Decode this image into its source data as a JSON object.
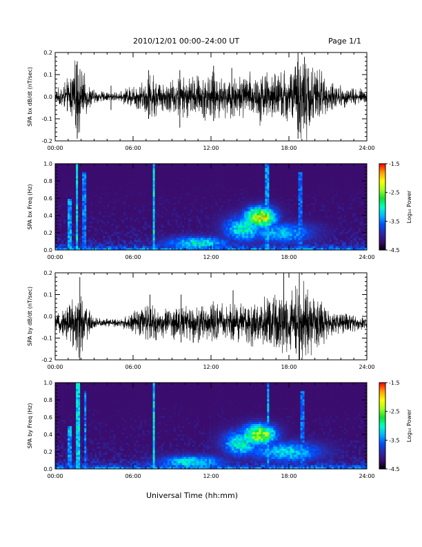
{
  "header": {
    "title": "2010/12/01  00:00–24:00 UT",
    "page": "Page 1/1"
  },
  "x_axis_title": "Universal Time (hh:mm)",
  "colors": {
    "trace": "#000000",
    "axes": "#000000",
    "background": "#ffffff",
    "colormap": [
      "#000000",
      "#3a0d6e",
      "#2a2aa8",
      "#0050ff",
      "#00b8ff",
      "#00ffc8",
      "#10e030",
      "#a0ff20",
      "#ffff00",
      "#ffa000",
      "#ff0000"
    ]
  },
  "chart_data": [
    {
      "type": "line",
      "ylabel": "SPA bx dB/dt (nT/sec)",
      "xlim": [
        "00:00",
        "24:00"
      ],
      "ylim": [
        -0.2,
        0.2
      ],
      "x_ticks": [
        "00:00",
        "06:00",
        "12:00",
        "18:00",
        "24:00"
      ],
      "y_ticks": [
        "-0.2",
        "-0.1",
        "0.0",
        "0.1",
        "0.2"
      ],
      "y_tick_values": [
        -0.2,
        -0.1,
        0.0,
        0.1,
        0.2
      ],
      "baseline": 0.0,
      "envelope": {
        "x_hours": [
          0,
          0.5,
          1.0,
          1.5,
          1.8,
          2.2,
          2.6,
          3.0,
          4.0,
          5.0,
          5.5,
          6.0,
          6.5,
          7.0,
          7.5,
          8.0,
          9.0,
          10.0,
          11.0,
          12.0,
          13.0,
          14.0,
          15.0,
          16.0,
          17.0,
          18.0,
          19.0,
          20.0,
          21.0,
          22.0,
          23.0,
          24.0
        ],
        "amplitude": [
          0.03,
          0.05,
          0.08,
          0.15,
          0.17,
          0.1,
          0.06,
          0.03,
          0.02,
          0.02,
          0.04,
          0.05,
          0.06,
          0.08,
          0.11,
          0.07,
          0.08,
          0.09,
          0.1,
          0.11,
          0.09,
          0.1,
          0.11,
          0.12,
          0.11,
          0.13,
          0.2,
          0.15,
          0.08,
          0.05,
          0.04,
          0.03
        ]
      },
      "spikes": [
        {
          "x_hours": 1.7,
          "ymin": -0.19,
          "ymax": 0.16
        },
        {
          "x_hours": 4.3,
          "ymin": -0.06,
          "ymax": 0.05
        },
        {
          "x_hours": 7.2,
          "ymin": -0.1,
          "ymax": 0.12
        },
        {
          "x_hours": 9.6,
          "ymin": -0.14,
          "ymax": 0.12
        },
        {
          "x_hours": 12.2,
          "ymin": -0.11,
          "ymax": 0.14
        },
        {
          "x_hours": 13.6,
          "ymin": -0.08,
          "ymax": 0.13
        },
        {
          "x_hours": 18.7,
          "ymin": -0.19,
          "ymax": 0.2
        },
        {
          "x_hours": 19.2,
          "ymin": -0.12,
          "ymax": 0.18
        }
      ]
    },
    {
      "type": "heatmap",
      "ylabel": "SPA bx Freq (Hz)",
      "colorbar_label": "Log₁₀ Power",
      "xlim": [
        "00:00",
        "24:00"
      ],
      "ylim": [
        0.0,
        1.0
      ],
      "x_ticks": [
        "00:00",
        "06:00",
        "12:00",
        "18:00",
        "24:00"
      ],
      "y_ticks": [
        "0.0",
        "0.2",
        "0.4",
        "0.6",
        "0.8",
        "1.0"
      ],
      "y_tick_values": [
        0.0,
        0.2,
        0.4,
        0.6,
        0.8,
        1.0
      ],
      "colorbar_ticks": [
        "-1.5",
        "-2.5",
        "-3.5",
        "-4.5"
      ],
      "colorbar_tick_values": [
        -1.5,
        -2.5,
        -3.5,
        -4.5
      ],
      "zlim": [
        -4.5,
        -1.5
      ],
      "features": {
        "vertical_lines": [
          {
            "x_hours": 1.1,
            "fmax": 0.6,
            "level": -3.4
          },
          {
            "x_hours": 1.7,
            "fmax": 1.0,
            "level": -3.2
          },
          {
            "x_hours": 2.2,
            "fmax": 0.9,
            "level": -3.5
          },
          {
            "x_hours": 7.6,
            "fmax": 1.0,
            "level": -3.2
          },
          {
            "x_hours": 16.3,
            "fmax": 1.0,
            "level": -3.4
          },
          {
            "x_hours": 18.9,
            "fmax": 0.9,
            "level": -3.6
          }
        ],
        "blobs": [
          {
            "x_hours": 15.8,
            "f": 0.38,
            "dx": 1.2,
            "df": 0.12,
            "level": -2.0
          },
          {
            "x_hours": 14.5,
            "f": 0.25,
            "dx": 1.5,
            "df": 0.15,
            "level": -2.9
          },
          {
            "x_hours": 17.5,
            "f": 0.2,
            "dx": 2.5,
            "df": 0.12,
            "level": -3.2
          },
          {
            "x_hours": 11.0,
            "f": 0.08,
            "dx": 2.5,
            "df": 0.08,
            "level": -3.0
          }
        ]
      }
    },
    {
      "type": "line",
      "ylabel": "SPA by dB/dt (nT/sec)",
      "xlim": [
        "00:00",
        "24:00"
      ],
      "ylim": [
        -0.2,
        0.2
      ],
      "x_ticks": [
        "00:00",
        "06:00",
        "12:00",
        "18:00",
        "24:00"
      ],
      "y_ticks": [
        "-0.2",
        "-0.1",
        "0.0",
        "0.1",
        "0.2"
      ],
      "y_tick_values": [
        -0.2,
        -0.1,
        0.0,
        0.1,
        0.2
      ],
      "baseline": -0.03,
      "envelope": {
        "x_hours": [
          0,
          0.5,
          1.0,
          1.5,
          1.8,
          2.2,
          2.6,
          3.0,
          4.0,
          5.0,
          5.5,
          6.0,
          6.5,
          7.0,
          7.5,
          8.0,
          9.0,
          10.0,
          11.0,
          12.0,
          13.0,
          14.0,
          15.0,
          16.0,
          17.0,
          18.0,
          19.0,
          20.0,
          21.0,
          22.0,
          23.0,
          24.0
        ],
        "amplitude": [
          0.03,
          0.05,
          0.1,
          0.15,
          0.17,
          0.11,
          0.06,
          0.03,
          0.02,
          0.02,
          0.03,
          0.05,
          0.06,
          0.08,
          0.1,
          0.06,
          0.07,
          0.08,
          0.09,
          0.1,
          0.08,
          0.09,
          0.1,
          0.11,
          0.12,
          0.14,
          0.2,
          0.14,
          0.07,
          0.05,
          0.04,
          0.03
        ]
      },
      "spikes": [
        {
          "x_hours": 1.9,
          "ymin": -0.2,
          "ymax": 0.18
        },
        {
          "x_hours": 7.3,
          "ymin": -0.1,
          "ymax": 0.1
        },
        {
          "x_hours": 9.7,
          "ymin": -0.12,
          "ymax": 0.1
        },
        {
          "x_hours": 13.7,
          "ymin": -0.09,
          "ymax": 0.12
        },
        {
          "x_hours": 17.6,
          "ymin": -0.13,
          "ymax": 0.2
        },
        {
          "x_hours": 18.8,
          "ymin": -0.2,
          "ymax": 0.2
        }
      ]
    },
    {
      "type": "heatmap",
      "ylabel": "SPA by Freq (Hz)",
      "colorbar_label": "Log₁₀ Power",
      "xlim": [
        "00:00",
        "24:00"
      ],
      "ylim": [
        0.0,
        1.0
      ],
      "x_ticks": [
        "00:00",
        "06:00",
        "12:00",
        "18:00",
        "24:00"
      ],
      "y_ticks": [
        "0.0",
        "0.2",
        "0.4",
        "0.6",
        "0.8",
        "1.0"
      ],
      "y_tick_values": [
        0.0,
        0.2,
        0.4,
        0.6,
        0.8,
        1.0
      ],
      "colorbar_ticks": [
        "-1.5",
        "-2.5",
        "-3.5",
        "-4.5"
      ],
      "colorbar_tick_values": [
        -1.5,
        -2.5,
        -3.5,
        -4.5
      ],
      "zlim": [
        -4.5,
        -1.5
      ],
      "features": {
        "vertical_lines": [
          {
            "x_hours": 1.1,
            "fmax": 0.5,
            "level": -3.4
          },
          {
            "x_hours": 1.8,
            "fmax": 1.0,
            "level": -3.2
          },
          {
            "x_hours": 2.3,
            "fmax": 0.9,
            "level": -3.5
          },
          {
            "x_hours": 7.6,
            "fmax": 1.0,
            "level": -3.2
          },
          {
            "x_hours": 16.4,
            "fmax": 1.0,
            "level": -3.4
          },
          {
            "x_hours": 19.0,
            "fmax": 0.9,
            "level": -3.6
          }
        ],
        "blobs": [
          {
            "x_hours": 15.7,
            "f": 0.4,
            "dx": 1.3,
            "df": 0.12,
            "level": -2.1
          },
          {
            "x_hours": 14.3,
            "f": 0.3,
            "dx": 1.4,
            "df": 0.15,
            "level": -2.9
          },
          {
            "x_hours": 17.8,
            "f": 0.2,
            "dx": 2.8,
            "df": 0.12,
            "level": -3.1
          },
          {
            "x_hours": 10.5,
            "f": 0.08,
            "dx": 2.5,
            "df": 0.08,
            "level": -3.0
          }
        ]
      }
    }
  ]
}
